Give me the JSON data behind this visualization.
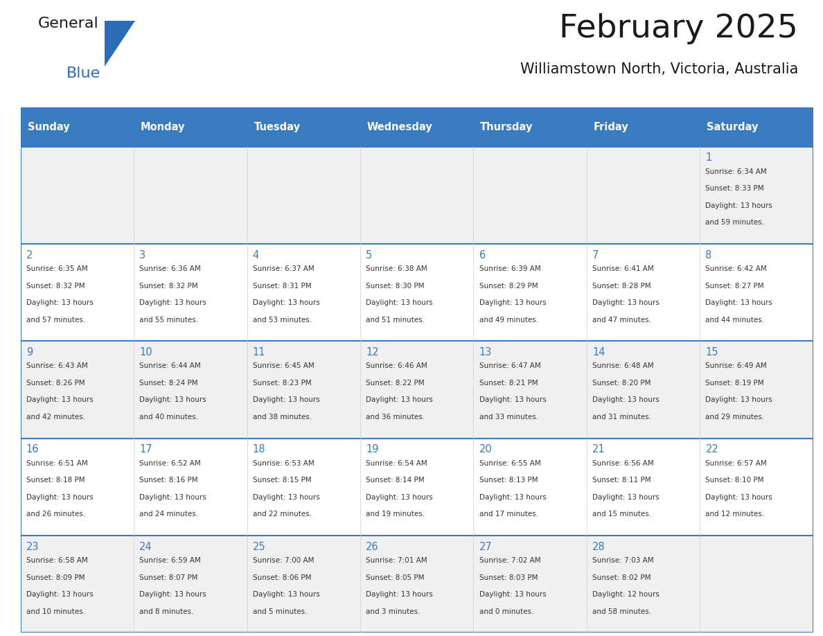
{
  "title": "February 2025",
  "subtitle": "Williamstown North, Victoria, Australia",
  "days_of_week": [
    "Sunday",
    "Monday",
    "Tuesday",
    "Wednesday",
    "Thursday",
    "Friday",
    "Saturday"
  ],
  "header_bg": "#3a7bbf",
  "header_text": "#ffffff",
  "cell_bg_light": "#f0f0f0",
  "cell_bg_white": "#ffffff",
  "border_color": "#3a7bbf",
  "day_number_color": "#3a7bbf",
  "text_color": "#333333",
  "title_color": "#1a1a1a",
  "logo_general_color": "#1a1a1a",
  "logo_blue_color": "#2b6cb8",
  "calendar_data": [
    [
      null,
      null,
      null,
      null,
      null,
      null,
      {
        "day": 1,
        "sunrise": "6:34 AM",
        "sunset": "8:33 PM",
        "daylight_hours": 13,
        "daylight_minutes": 59
      }
    ],
    [
      {
        "day": 2,
        "sunrise": "6:35 AM",
        "sunset": "8:32 PM",
        "daylight_hours": 13,
        "daylight_minutes": 57
      },
      {
        "day": 3,
        "sunrise": "6:36 AM",
        "sunset": "8:32 PM",
        "daylight_hours": 13,
        "daylight_minutes": 55
      },
      {
        "day": 4,
        "sunrise": "6:37 AM",
        "sunset": "8:31 PM",
        "daylight_hours": 13,
        "daylight_minutes": 53
      },
      {
        "day": 5,
        "sunrise": "6:38 AM",
        "sunset": "8:30 PM",
        "daylight_hours": 13,
        "daylight_minutes": 51
      },
      {
        "day": 6,
        "sunrise": "6:39 AM",
        "sunset": "8:29 PM",
        "daylight_hours": 13,
        "daylight_minutes": 49
      },
      {
        "day": 7,
        "sunrise": "6:41 AM",
        "sunset": "8:28 PM",
        "daylight_hours": 13,
        "daylight_minutes": 47
      },
      {
        "day": 8,
        "sunrise": "6:42 AM",
        "sunset": "8:27 PM",
        "daylight_hours": 13,
        "daylight_minutes": 44
      }
    ],
    [
      {
        "day": 9,
        "sunrise": "6:43 AM",
        "sunset": "8:26 PM",
        "daylight_hours": 13,
        "daylight_minutes": 42
      },
      {
        "day": 10,
        "sunrise": "6:44 AM",
        "sunset": "8:24 PM",
        "daylight_hours": 13,
        "daylight_minutes": 40
      },
      {
        "day": 11,
        "sunrise": "6:45 AM",
        "sunset": "8:23 PM",
        "daylight_hours": 13,
        "daylight_minutes": 38
      },
      {
        "day": 12,
        "sunrise": "6:46 AM",
        "sunset": "8:22 PM",
        "daylight_hours": 13,
        "daylight_minutes": 36
      },
      {
        "day": 13,
        "sunrise": "6:47 AM",
        "sunset": "8:21 PM",
        "daylight_hours": 13,
        "daylight_minutes": 33
      },
      {
        "day": 14,
        "sunrise": "6:48 AM",
        "sunset": "8:20 PM",
        "daylight_hours": 13,
        "daylight_minutes": 31
      },
      {
        "day": 15,
        "sunrise": "6:49 AM",
        "sunset": "8:19 PM",
        "daylight_hours": 13,
        "daylight_minutes": 29
      }
    ],
    [
      {
        "day": 16,
        "sunrise": "6:51 AM",
        "sunset": "8:18 PM",
        "daylight_hours": 13,
        "daylight_minutes": 26
      },
      {
        "day": 17,
        "sunrise": "6:52 AM",
        "sunset": "8:16 PM",
        "daylight_hours": 13,
        "daylight_minutes": 24
      },
      {
        "day": 18,
        "sunrise": "6:53 AM",
        "sunset": "8:15 PM",
        "daylight_hours": 13,
        "daylight_minutes": 22
      },
      {
        "day": 19,
        "sunrise": "6:54 AM",
        "sunset": "8:14 PM",
        "daylight_hours": 13,
        "daylight_minutes": 19
      },
      {
        "day": 20,
        "sunrise": "6:55 AM",
        "sunset": "8:13 PM",
        "daylight_hours": 13,
        "daylight_minutes": 17
      },
      {
        "day": 21,
        "sunrise": "6:56 AM",
        "sunset": "8:11 PM",
        "daylight_hours": 13,
        "daylight_minutes": 15
      },
      {
        "day": 22,
        "sunrise": "6:57 AM",
        "sunset": "8:10 PM",
        "daylight_hours": 13,
        "daylight_minutes": 12
      }
    ],
    [
      {
        "day": 23,
        "sunrise": "6:58 AM",
        "sunset": "8:09 PM",
        "daylight_hours": 13,
        "daylight_minutes": 10
      },
      {
        "day": 24,
        "sunrise": "6:59 AM",
        "sunset": "8:07 PM",
        "daylight_hours": 13,
        "daylight_minutes": 8
      },
      {
        "day": 25,
        "sunrise": "7:00 AM",
        "sunset": "8:06 PM",
        "daylight_hours": 13,
        "daylight_minutes": 5
      },
      {
        "day": 26,
        "sunrise": "7:01 AM",
        "sunset": "8:05 PM",
        "daylight_hours": 13,
        "daylight_minutes": 3
      },
      {
        "day": 27,
        "sunrise": "7:02 AM",
        "sunset": "8:03 PM",
        "daylight_hours": 13,
        "daylight_minutes": 0
      },
      {
        "day": 28,
        "sunrise": "7:03 AM",
        "sunset": "8:02 PM",
        "daylight_hours": 12,
        "daylight_minutes": 58
      },
      null
    ]
  ],
  "figsize": [
    11.88,
    9.18
  ],
  "dpi": 100
}
